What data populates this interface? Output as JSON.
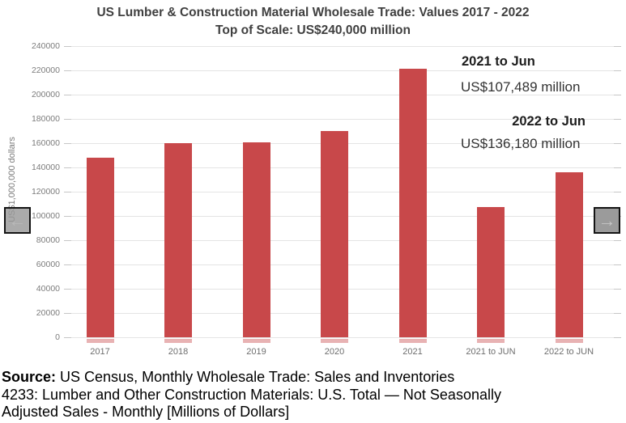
{
  "title": {
    "line1": "US Lumber & Construction Material Wholesale Trade: Values 2017 - 2022",
    "line2": "Top of Scale: US$240,000 million"
  },
  "chart_data": {
    "type": "bar",
    "categories": [
      "2017",
      "2018",
      "2019",
      "2020",
      "2021",
      "2021 to JUN",
      "2022 to JUN"
    ],
    "values": [
      148200,
      160600,
      161300,
      170100,
      221800,
      107489,
      136180
    ],
    "title": "US Lumber & Construction Material Wholesale Trade: Values 2017 - 2022",
    "subtitle": "Top of Scale: US$240,000 million",
    "xlabel": "",
    "ylabel": "US$1,000,000 dollars",
    "ylim": [
      0,
      240000
    ],
    "ytick_step": 20000,
    "grid": true,
    "legend": "none",
    "bar_color": "#c8484a"
  },
  "annotations": [
    {
      "heading": "2021 to Jun",
      "value": "US$107,489 million"
    },
    {
      "heading": "2022 to Jun",
      "value": "US$136,180 million"
    }
  ],
  "nav": {
    "left_arrow": "←",
    "right_arrow": "→"
  },
  "source": {
    "label": "Source:",
    "line1_rest": " US Census, Monthly Wholesale Trade: Sales and Inventories",
    "line2": "4233: Lumber and Other Construction Materials: U.S. Total — Not Seasonally",
    "line3": "Adjusted Sales - Monthly [Millions of Dollars]"
  }
}
